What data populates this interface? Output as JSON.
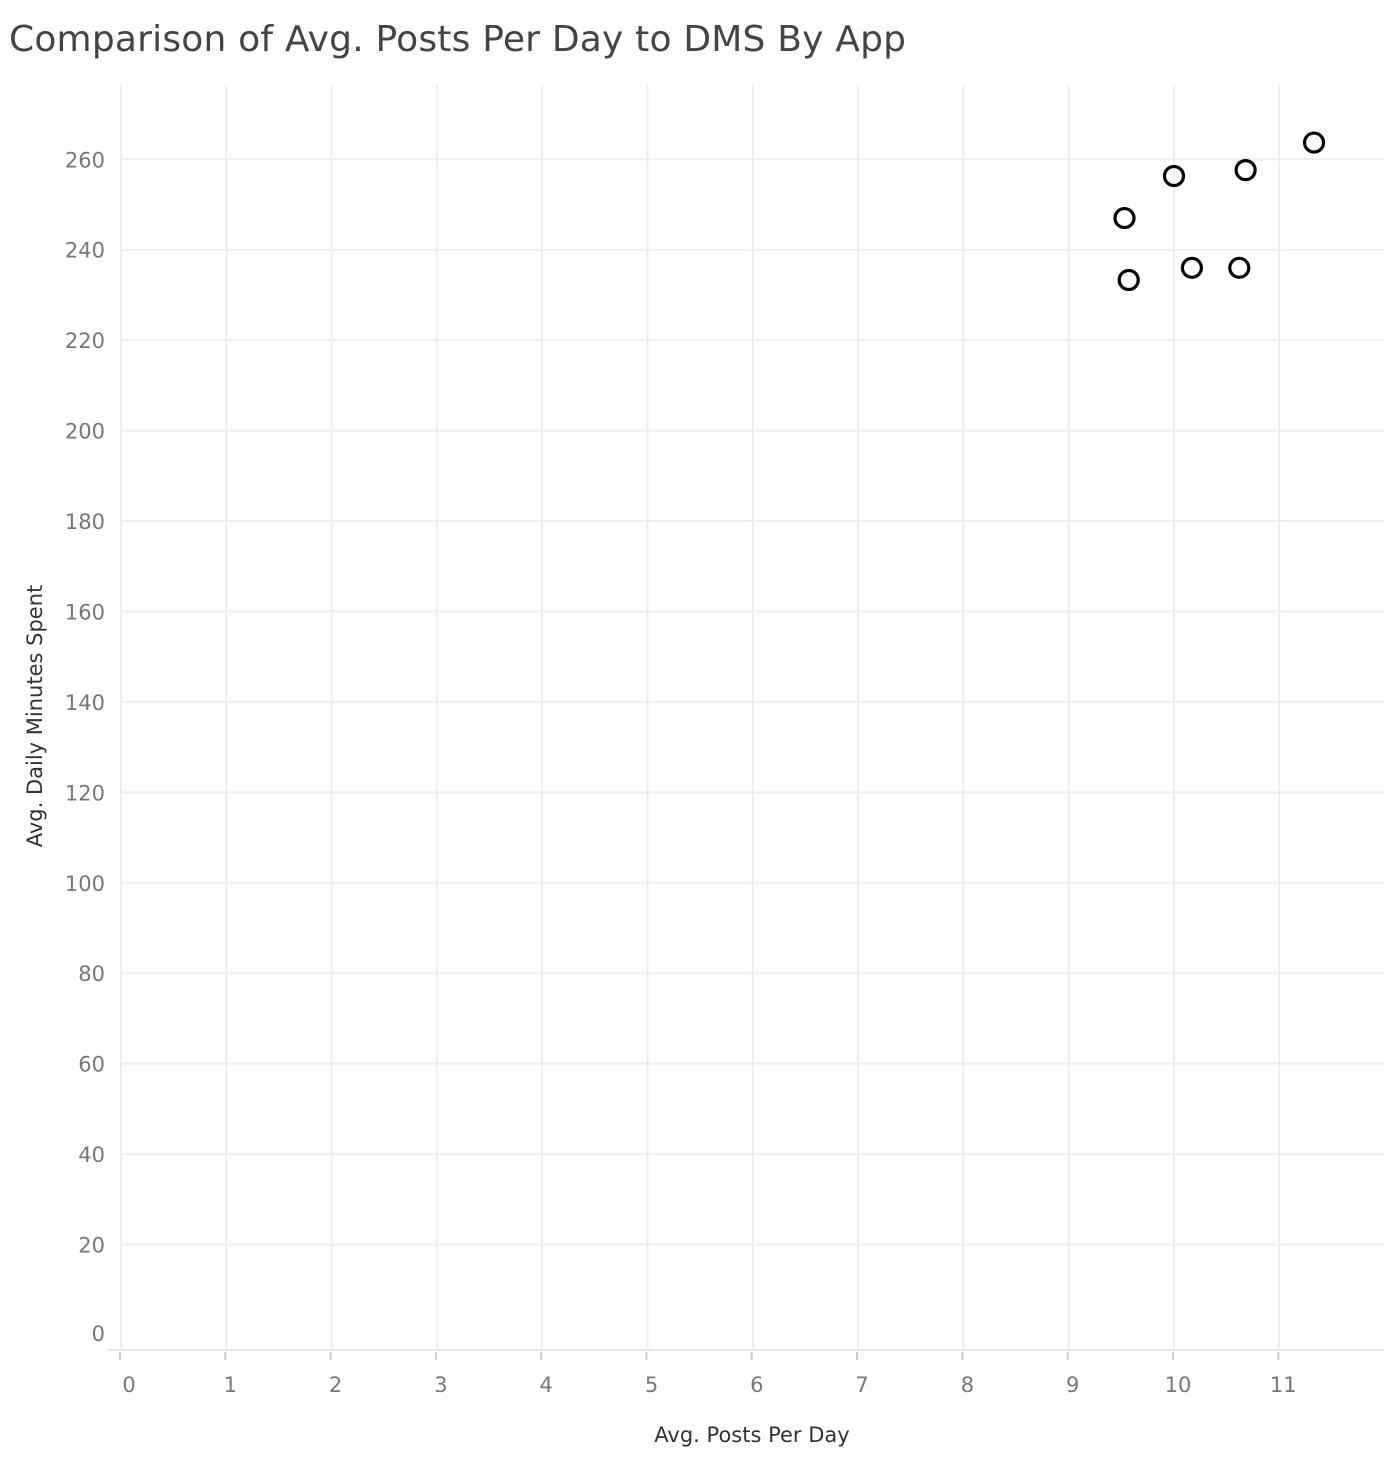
{
  "chart_data": {
    "type": "scatter",
    "title": "Comparison of Avg. Posts Per Day to DMS By App",
    "xlabel": "Avg. Posts Per Day",
    "ylabel": "Avg. Daily Minutes Spent",
    "xlim": [
      0,
      11.95
    ],
    "ylim": [
      -3,
      275
    ],
    "xticks": [
      0,
      1,
      2,
      3,
      4,
      5,
      6,
      7,
      8,
      9,
      10,
      11
    ],
    "yticks": [
      0,
      20,
      40,
      60,
      80,
      100,
      120,
      140,
      160,
      180,
      200,
      220,
      240,
      260
    ],
    "grid": true,
    "legend": "none",
    "marker_color": "#000000",
    "marker": "hollow-circle",
    "points": [
      {
        "x": 9.53,
        "y": 247.0
      },
      {
        "x": 9.57,
        "y": 233.3
      },
      {
        "x": 10.0,
        "y": 256.3
      },
      {
        "x": 10.17,
        "y": 236.0
      },
      {
        "x": 10.62,
        "y": 236.0
      },
      {
        "x": 10.68,
        "y": 257.6
      },
      {
        "x": 11.33,
        "y": 263.7
      }
    ]
  }
}
